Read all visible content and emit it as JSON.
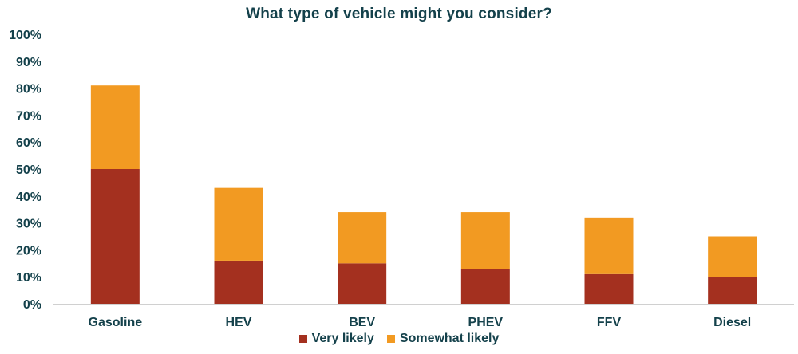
{
  "chart_data": {
    "type": "bar",
    "stacked": true,
    "title": "What type of vehicle might you consider?",
    "categories": [
      "Gasoline",
      "HEV",
      "BEV",
      "PHEV",
      "FFV",
      "Diesel"
    ],
    "series": [
      {
        "name": "Very likely",
        "color": "#a4301f",
        "values": [
          50,
          16,
          15,
          13,
          11,
          10
        ]
      },
      {
        "name": "Somewhat likely",
        "color": "#f29a22",
        "values": [
          31,
          27,
          19,
          21,
          21,
          15
        ]
      }
    ],
    "ylim": [
      0,
      100
    ],
    "yticks": [
      0,
      10,
      20,
      30,
      40,
      50,
      60,
      70,
      80,
      90,
      100
    ],
    "ytick_labels": [
      "0%",
      "10%",
      "20%",
      "30%",
      "40%",
      "50%",
      "60%",
      "70%",
      "80%",
      "90%",
      "100%"
    ],
    "xlabel": "",
    "ylabel": "",
    "grid": false,
    "legend_position": "bottom",
    "axis_text_color": "#14414b"
  }
}
